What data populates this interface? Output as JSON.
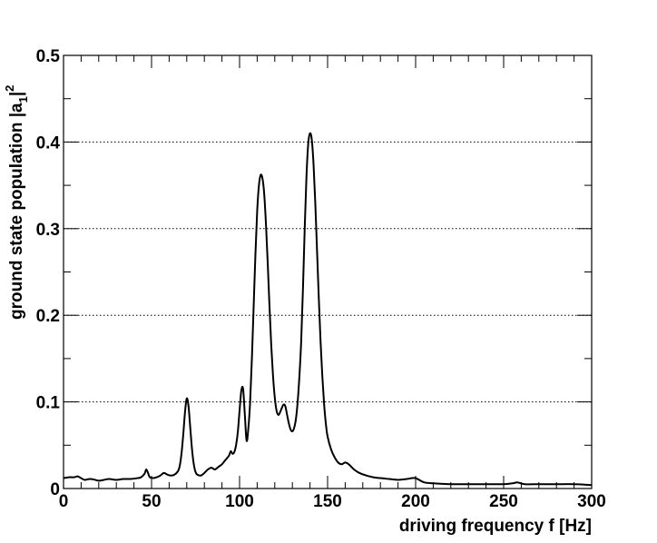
{
  "chart_data": {
    "type": "line",
    "xlabel": "driving frequency f [Hz]",
    "ylabel": {
      "main": "ground state population |a",
      "subscript": "1",
      "suffix": "|",
      "superscript": "2"
    },
    "xlim": [
      0,
      300
    ],
    "ylim": [
      0,
      0.5
    ],
    "x_ticks": [
      "0",
      "50",
      "100",
      "150",
      "200",
      "250",
      "300"
    ],
    "y_ticks": [
      "0",
      "0.1",
      "0.2",
      "0.3",
      "0.4",
      "0.5"
    ],
    "grid": "horizontal dotted at 0.1, 0.2, 0.3, 0.4",
    "series": [
      {
        "color": "#000000",
        "x": [
          0,
          3,
          6,
          8,
          10,
          12,
          15,
          18,
          20,
          23,
          26,
          30,
          34,
          38,
          42,
          44,
          46,
          47,
          48,
          49,
          51,
          53,
          55,
          57,
          59,
          61,
          63,
          65,
          66,
          67,
          68,
          69,
          70,
          71,
          72,
          73,
          74,
          75,
          76,
          78,
          80,
          82,
          84,
          86,
          88,
          90,
          92,
          94,
          95,
          96,
          97,
          98,
          99,
          100,
          101,
          102,
          103,
          104,
          105,
          106,
          107,
          108,
          109,
          110,
          111,
          112,
          113,
          114,
          115,
          116,
          117,
          118,
          119,
          120,
          121,
          122,
          123,
          124,
          125,
          126,
          127,
          128,
          129,
          130,
          131,
          132,
          133,
          134,
          135,
          136,
          137,
          138,
          139,
          140,
          141,
          142,
          143,
          144,
          145,
          146,
          147,
          148,
          149,
          150,
          152,
          154,
          156,
          158,
          160,
          162,
          165,
          168,
          172,
          176,
          180,
          185,
          190,
          195,
          198,
          200,
          202,
          205,
          210,
          220,
          230,
          240,
          250,
          255,
          258,
          262,
          270,
          280,
          290,
          300
        ],
        "y": [
          0.012,
          0.013,
          0.013,
          0.014,
          0.012,
          0.01,
          0.011,
          0.01,
          0.009,
          0.01,
          0.011,
          0.01,
          0.011,
          0.011,
          0.012,
          0.013,
          0.017,
          0.022,
          0.018,
          0.013,
          0.012,
          0.013,
          0.015,
          0.018,
          0.016,
          0.015,
          0.016,
          0.02,
          0.026,
          0.04,
          0.062,
          0.088,
          0.104,
          0.095,
          0.07,
          0.045,
          0.028,
          0.019,
          0.016,
          0.015,
          0.018,
          0.022,
          0.024,
          0.022,
          0.025,
          0.028,
          0.033,
          0.038,
          0.043,
          0.04,
          0.042,
          0.05,
          0.065,
          0.09,
          0.113,
          0.115,
          0.085,
          0.055,
          0.07,
          0.1,
          0.15,
          0.21,
          0.27,
          0.32,
          0.35,
          0.362,
          0.358,
          0.34,
          0.305,
          0.26,
          0.21,
          0.165,
          0.13,
          0.105,
          0.09,
          0.085,
          0.088,
          0.093,
          0.097,
          0.095,
          0.085,
          0.075,
          0.068,
          0.066,
          0.07,
          0.08,
          0.1,
          0.13,
          0.17,
          0.23,
          0.3,
          0.36,
          0.398,
          0.41,
          0.403,
          0.375,
          0.33,
          0.275,
          0.22,
          0.17,
          0.13,
          0.098,
          0.075,
          0.06,
          0.045,
          0.036,
          0.03,
          0.028,
          0.03,
          0.028,
          0.022,
          0.018,
          0.015,
          0.013,
          0.012,
          0.011,
          0.01,
          0.011,
          0.012,
          0.012,
          0.01,
          0.007,
          0.006,
          0.005,
          0.005,
          0.005,
          0.005,
          0.006,
          0.007,
          0.005,
          0.005,
          0.005,
          0.005,
          0.004
        ]
      }
    ]
  }
}
